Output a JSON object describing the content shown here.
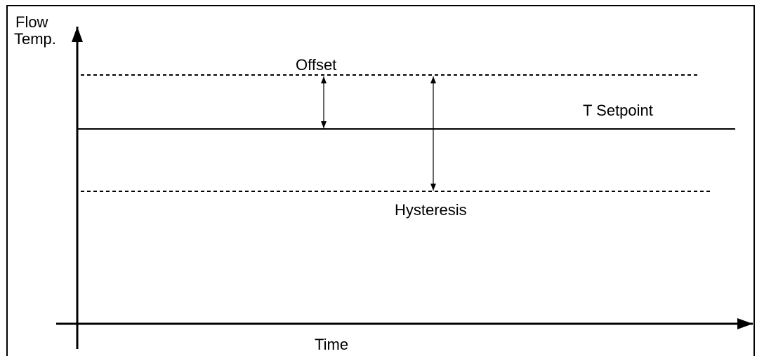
{
  "axes": {
    "y_label": [
      "Flow",
      "Temp."
    ],
    "x_label": "Time"
  },
  "labels": {
    "offset": "Offset",
    "setpoint": "T Setpoint",
    "hysteresis": "Hysteresis"
  }
}
